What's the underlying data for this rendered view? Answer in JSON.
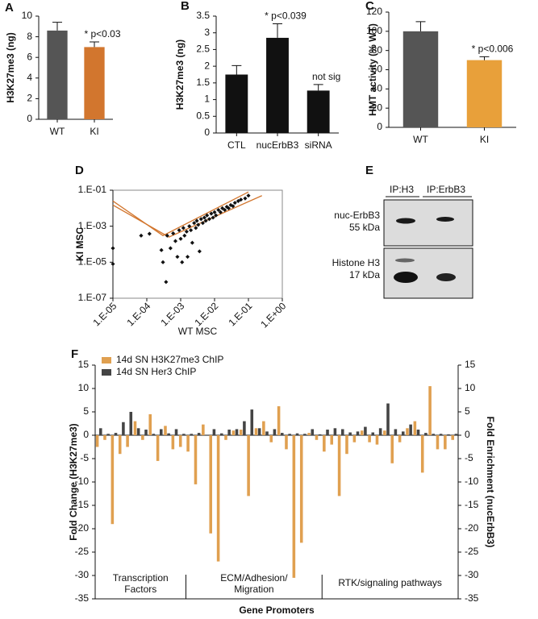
{
  "chart_data": [
    {
      "panel": "A",
      "type": "bar",
      "categories": [
        "WT",
        "KI"
      ],
      "values": [
        8.6,
        7.0
      ],
      "errors": [
        0.8,
        0.5
      ],
      "colors": [
        "#555555",
        "#d2762e"
      ],
      "bar_labels": [
        null,
        "* p<0.03"
      ],
      "ylabel": "H3K27me3 (ng)",
      "ylim": [
        0,
        10
      ],
      "yticks": [
        0,
        2,
        4,
        6,
        8,
        10
      ]
    },
    {
      "panel": "B",
      "type": "bar",
      "categories": [
        "CTL",
        "nucErbB3",
        "siRNA"
      ],
      "values": [
        1.75,
        2.85,
        1.27
      ],
      "errors": [
        0.27,
        0.42,
        0.18
      ],
      "colors": [
        "#111111",
        "#111111",
        "#111111"
      ],
      "bar_labels": [
        null,
        "* p<0.039",
        "not sig"
      ],
      "ylabel": "H3K27me3 (ng)",
      "ylim": [
        0,
        3.5
      ],
      "yticks": [
        0,
        0.5,
        1,
        1.5,
        2,
        2.5,
        3,
        3.5
      ]
    },
    {
      "panel": "C",
      "type": "bar",
      "categories": [
        "WT",
        "KI"
      ],
      "values": [
        100,
        70
      ],
      "errors": [
        10,
        3.5
      ],
      "colors": [
        "#555555",
        "#e8a03a"
      ],
      "bar_labels": [
        null,
        "* p<0.006"
      ],
      "ylabel": "HMT activity (% WT)",
      "ylim": [
        0,
        120
      ],
      "yticks": [
        0,
        20,
        40,
        60,
        80,
        100,
        120
      ]
    },
    {
      "panel": "D",
      "type": "scatter",
      "xscale": "log",
      "yscale": "log",
      "xlabel": "WT MSC",
      "ylabel": "KI MSC",
      "color": "#111111",
      "x": [
        1e-05,
        1e-05,
        6.8e-05,
        0.00012,
        0.00027,
        0.0003,
        0.00037,
        0.0004,
        0.0005,
        0.0006,
        0.0007,
        0.0008,
        0.0009,
        0.001,
        0.0011,
        0.0012,
        0.0013,
        0.0015,
        0.0016,
        0.0018,
        0.002,
        0.0022,
        0.0025,
        0.0028,
        0.003,
        0.0033,
        0.0036,
        0.004,
        0.0045,
        0.005,
        0.0055,
        0.006,
        0.007,
        0.008,
        0.009,
        0.01,
        0.011,
        0.013,
        0.015,
        0.017,
        0.02,
        0.023,
        0.026,
        0.03,
        0.035,
        0.04,
        0.05,
        0.06,
        0.08,
        0.1
      ],
      "y": [
        6e-05,
        8e-06,
        0.0003,
        0.00038,
        4.7e-05,
        1e-05,
        8e-07,
        0.0003,
        6e-05,
        0.0004,
        0.00015,
        2e-05,
        0.0006,
        0.0002,
        1e-05,
        0.0008,
        0.0003,
        0.0005,
        2e-05,
        0.001,
        0.0006,
        0.00012,
        0.0015,
        0.0008,
        0.002,
        0.0012,
        4e-05,
        0.0025,
        0.0015,
        0.003,
        0.002,
        0.004,
        0.0025,
        0.005,
        0.003,
        0.006,
        0.004,
        0.008,
        0.006,
        0.01,
        0.008,
        0.012,
        0.01,
        0.015,
        0.013,
        0.02,
        0.025,
        0.03,
        0.035,
        0.05
      ],
      "lines": [
        {
          "color": "#d2762e",
          "x": [
            1e-05,
            0.0003,
            0.1
          ],
          "y": [
            0.025,
            0.0003,
            0.08
          ]
        },
        {
          "color": "#d2762e",
          "x": [
            1e-05,
            0.00045,
            0.25
          ],
          "y": [
            0.015,
            0.00025,
            0.05
          ]
        }
      ],
      "xlim": [
        1e-05,
        1
      ],
      "ylim": [
        1e-07,
        0.1
      ],
      "xticks": [
        {
          "value": 1e-05,
          "label": "1.E-05"
        },
        {
          "value": 0.0001,
          "label": "1.E-04"
        },
        {
          "value": 0.001,
          "label": "1.E-03"
        },
        {
          "value": 0.01,
          "label": "1.E-02"
        },
        {
          "value": 0.1,
          "label": "1.E-01"
        },
        {
          "value": 1,
          "label": "1.E+00"
        }
      ],
      "yticks": [
        {
          "value": 1e-07,
          "label": "1.E-07"
        },
        {
          "value": 1e-05,
          "label": "1.E-05"
        },
        {
          "value": 0.001,
          "label": "1.E-03"
        },
        {
          "value": 0.1,
          "label": "1.E-01"
        }
      ]
    },
    {
      "panel": "F",
      "type": "bar",
      "xlabel": "Gene Promoters",
      "ylabel": "Fold Change (H3K27me3)",
      "y2label": "Fold Enrichment (nucErbB3)",
      "legend": "upper left",
      "groups": [
        [
          "Transcription",
          "Factors"
        ],
        [
          "ECM/Adhesion/",
          "Migration"
        ],
        [
          "RTK/signaling pathways"
        ]
      ],
      "categories": [
        null,
        null,
        null,
        null,
        null,
        null,
        null,
        null,
        null,
        null,
        null,
        null,
        null,
        null,
        null,
        null,
        null,
        null,
        null,
        null,
        null,
        null,
        null,
        null,
        null,
        null,
        null,
        null,
        null,
        null,
        null,
        null,
        null,
        null,
        null,
        null,
        null,
        null,
        null,
        null,
        null,
        null,
        null,
        null,
        null,
        null,
        null,
        null
      ],
      "series": [
        {
          "name": "14d SN H3K27me3 ChIP",
          "color": "#e0a050",
          "axis": "y",
          "values": [
            -2.5,
            -1,
            -19,
            -4,
            -2.5,
            3,
            -1,
            4.5,
            -5.5,
            2,
            -3,
            -2.5,
            -3.5,
            -10.5,
            2.3,
            -21,
            -27,
            -1,
            1,
            1.2,
            -13,
            1.5,
            3,
            -1.5,
            6.2,
            -3,
            -30.5,
            -23,
            0.5,
            -1,
            -3.5,
            -2,
            -13,
            -4,
            -1.5,
            1,
            -1.5,
            -2,
            1,
            -6,
            -1.5,
            1.5,
            3,
            -8,
            10.5,
            -3,
            -3,
            -1
          ]
        },
        {
          "name": "14d SN Her3 ChIP",
          "color": "#444444",
          "axis": "y2",
          "values": [
            1.5,
            0.3,
            0.5,
            2.8,
            5,
            1.5,
            1.2,
            0.3,
            1.3,
            0.4,
            1.3,
            0.3,
            0.3,
            0.5,
            0,
            1.3,
            0.4,
            1.2,
            1.3,
            3,
            5.5,
            1.5,
            0.8,
            1.3,
            0.5,
            0.3,
            0.4,
            0.3,
            1.3,
            0.2,
            1.2,
            1.5,
            1.3,
            0.6,
            0.8,
            1.8,
            0.6,
            1.5,
            6.8,
            1.3,
            0.8,
            2.3,
            1.2,
            0.5,
            0.3,
            0.3,
            0.2,
            0.3
          ]
        }
      ],
      "ylim": [
        -35,
        15
      ],
      "yticks": [
        -35,
        -30,
        -25,
        -20,
        -15,
        -10,
        -5,
        0,
        5,
        10,
        15
      ],
      "y2lim": [
        -35,
        15
      ],
      "y2ticks": [
        -35,
        -30,
        -25,
        -20,
        -15,
        -10,
        -5,
        0,
        5,
        10,
        15
      ]
    }
  ],
  "blot": {
    "panel": "E",
    "lanes": [
      "IP:H3",
      "IP:ErbB3"
    ],
    "rows": [
      {
        "name": "nuc-ErbB3",
        "size": "55 kDa"
      },
      {
        "name": "Histone H3",
        "size": "17 kDa"
      }
    ]
  }
}
